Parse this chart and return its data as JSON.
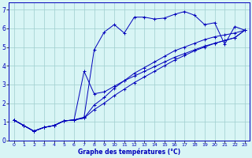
{
  "title": "Graphe des températures (°C)",
  "bg_color": "#d8f5f5",
  "line_color": "#0000bb",
  "xlim": [
    -0.5,
    23.5
  ],
  "ylim": [
    0,
    7.4
  ],
  "xticks": [
    0,
    1,
    2,
    3,
    4,
    5,
    6,
    7,
    8,
    9,
    10,
    11,
    12,
    13,
    14,
    15,
    16,
    17,
    18,
    19,
    20,
    21,
    22,
    23
  ],
  "yticks": [
    0,
    1,
    2,
    3,
    4,
    5,
    6,
    7
  ],
  "series": [
    {
      "x": [
        0,
        1,
        2,
        3,
        4,
        5,
        6,
        7,
        8,
        9,
        10,
        11,
        12,
        13,
        14,
        15,
        16,
        17,
        18,
        19,
        20,
        21,
        22,
        23
      ],
      "y": [
        1.1,
        0.8,
        0.5,
        0.7,
        0.8,
        1.05,
        1.1,
        1.25,
        4.85,
        5.8,
        6.2,
        5.75,
        6.6,
        6.6,
        6.5,
        6.55,
        6.75,
        6.9,
        6.7,
        6.2,
        6.3,
        5.15,
        6.1,
        5.9
      ]
    },
    {
      "x": [
        0,
        1,
        2,
        3,
        4,
        5,
        6,
        7,
        8,
        9,
        10,
        11,
        12,
        13,
        14,
        15,
        16,
        17,
        18,
        19,
        20,
        21,
        22,
        23
      ],
      "y": [
        1.1,
        0.8,
        0.5,
        0.7,
        0.8,
        1.05,
        1.1,
        1.2,
        1.9,
        2.3,
        2.8,
        3.2,
        3.6,
        3.9,
        4.2,
        4.5,
        4.8,
        5.0,
        5.2,
        5.4,
        5.55,
        5.65,
        5.75,
        5.9
      ]
    },
    {
      "x": [
        0,
        1,
        2,
        3,
        4,
        5,
        6,
        7,
        8,
        9,
        10,
        11,
        12,
        13,
        14,
        15,
        16,
        17,
        18,
        19,
        20,
        21,
        22,
        23
      ],
      "y": [
        1.1,
        0.8,
        0.5,
        0.7,
        0.8,
        1.05,
        1.1,
        1.2,
        1.65,
        2.0,
        2.4,
        2.75,
        3.1,
        3.4,
        3.7,
        4.0,
        4.3,
        4.55,
        4.8,
        5.0,
        5.2,
        5.35,
        5.5,
        5.9
      ]
    },
    {
      "x": [
        0,
        1,
        2,
        3,
        4,
        5,
        6,
        7,
        8,
        9,
        10,
        11,
        12,
        13,
        14,
        15,
        16,
        17,
        18,
        19,
        20,
        21,
        22,
        23
      ],
      "y": [
        1.1,
        0.8,
        0.5,
        0.7,
        0.8,
        1.05,
        1.1,
        3.7,
        2.5,
        2.6,
        2.9,
        3.2,
        3.45,
        3.7,
        3.95,
        4.2,
        4.45,
        4.65,
        4.85,
        5.05,
        5.2,
        5.35,
        5.5,
        5.9
      ]
    }
  ]
}
